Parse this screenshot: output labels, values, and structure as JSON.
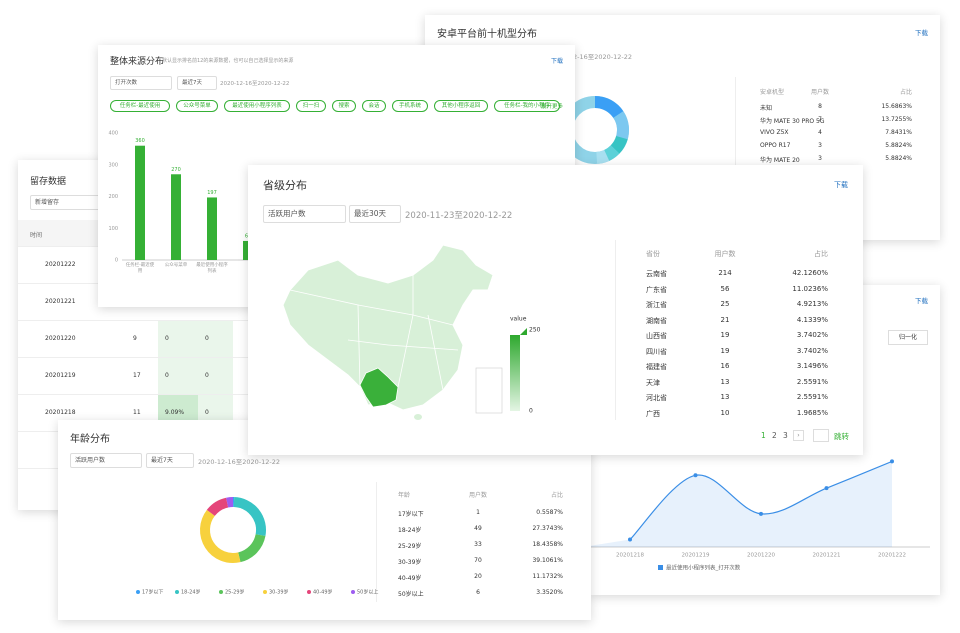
{
  "android_card": {
    "title": "安卓平台前十机型分布",
    "download": "下载",
    "date_range": "2020-12-16至2020-12-22",
    "columns": [
      "安卓机型",
      "用户数",
      "占比"
    ],
    "rows": [
      [
        "未知",
        8,
        "15.6863%"
      ],
      [
        "华为 MATE 30 PRO 5G",
        7,
        "13.7255%"
      ],
      [
        "VIVO Z5X",
        4,
        "7.8431%"
      ],
      [
        "OPPO R17",
        3,
        "5.8824%"
      ],
      [
        "华为 MATE 20",
        3,
        "5.8824%"
      ]
    ]
  },
  "line_card": {
    "download": "下载",
    "normalize": "归一化",
    "chart": {
      "type": "line",
      "categories": [
        "20201218",
        "20201219",
        "20201220",
        "20201221",
        "20201222"
      ],
      "ylim": [
        0,
        100
      ],
      "series": [
        {
          "name": "最近使用小程序列表_打开次数",
          "color": "#3a8ee6",
          "values": [
            7,
            67,
            31,
            55,
            80
          ]
        }
      ]
    }
  },
  "retention_card": {
    "title": "留存数据",
    "select": "新增留存",
    "columns": [
      "时间"
    ],
    "rows": [
      [
        "20201222"
      ],
      [
        "20201221"
      ],
      [
        "20201220",
        "9",
        "0",
        "0"
      ],
      [
        "20201219",
        "17",
        "0",
        "0"
      ],
      [
        "20201218",
        "11",
        "9.09%",
        "0"
      ]
    ]
  },
  "source_card": {
    "title": "整体来源分布",
    "subtitle": "默认显示排名前12的来源数据，也可以自己选择显示的来源",
    "download": "下载",
    "metric": "打开次数",
    "period": "最近7天",
    "date_range": "2020-12-16至2020-12-22",
    "tags": [
      "任务栏-最近使用",
      "公众号菜单",
      "最近使用小程序列表",
      "扫一扫",
      "搜索",
      "会话",
      "手机系统",
      "其他小程序返回",
      "任务栏-我的小程序"
    ],
    "expand": "展开更多",
    "chart": {
      "type": "bar",
      "categories": [
        "任务栏-最近使用",
        "公众号菜单",
        "最近使用小程序列表",
        null
      ],
      "values": [
        360,
        270,
        197,
        60
      ],
      "color": "#35b035",
      "ylim": [
        0,
        400
      ],
      "yticks": [
        0,
        100,
        200,
        300,
        400
      ]
    }
  },
  "age_card": {
    "title": "年龄分布",
    "metric": "活跃用户数",
    "period": "最近7天",
    "date_range": "2020-12-16至2020-12-22",
    "columns": [
      "年龄",
      "用户数",
      "占比"
    ],
    "rows": [
      [
        "17岁以下",
        1,
        "0.5587%"
      ],
      [
        "18-24岁",
        49,
        "27.3743%"
      ],
      [
        "25-29岁",
        33,
        "18.4358%"
      ],
      [
        "30-39岁",
        70,
        "39.1061%"
      ],
      [
        "40-49岁",
        20,
        "11.1732%"
      ],
      [
        "50岁以上",
        6,
        "3.3520%"
      ]
    ],
    "colors": [
      "#3a9ff5",
      "#37c4c4",
      "#5bc45b",
      "#f7d13d",
      "#e5457a",
      "#9e5cf0"
    ]
  },
  "province_card": {
    "title": "省级分布",
    "download": "下载",
    "metric": "活跃用户数",
    "period": "最近30天",
    "date_range": "2020-11-23至2020-12-22",
    "legend_title": "value",
    "legend_max": 250,
    "legend_min": 0,
    "columns": [
      "省份",
      "用户数",
      "占比"
    ],
    "rows": [
      [
        "云南省",
        214,
        "42.1260%"
      ],
      [
        "广东省",
        56,
        "11.0236%"
      ],
      [
        "浙江省",
        25,
        "4.9213%"
      ],
      [
        "湖南省",
        21,
        "4.1339%"
      ],
      [
        "山西省",
        19,
        "3.7402%"
      ],
      [
        "四川省",
        19,
        "3.7402%"
      ],
      [
        "福建省",
        16,
        "3.1496%"
      ],
      [
        "天津",
        13,
        "2.5591%"
      ],
      [
        "河北省",
        13,
        "2.5591%"
      ],
      [
        "广西",
        10,
        "1.9685%"
      ]
    ],
    "pages": [
      "1",
      "2",
      "3"
    ],
    "jump": "跳转"
  }
}
